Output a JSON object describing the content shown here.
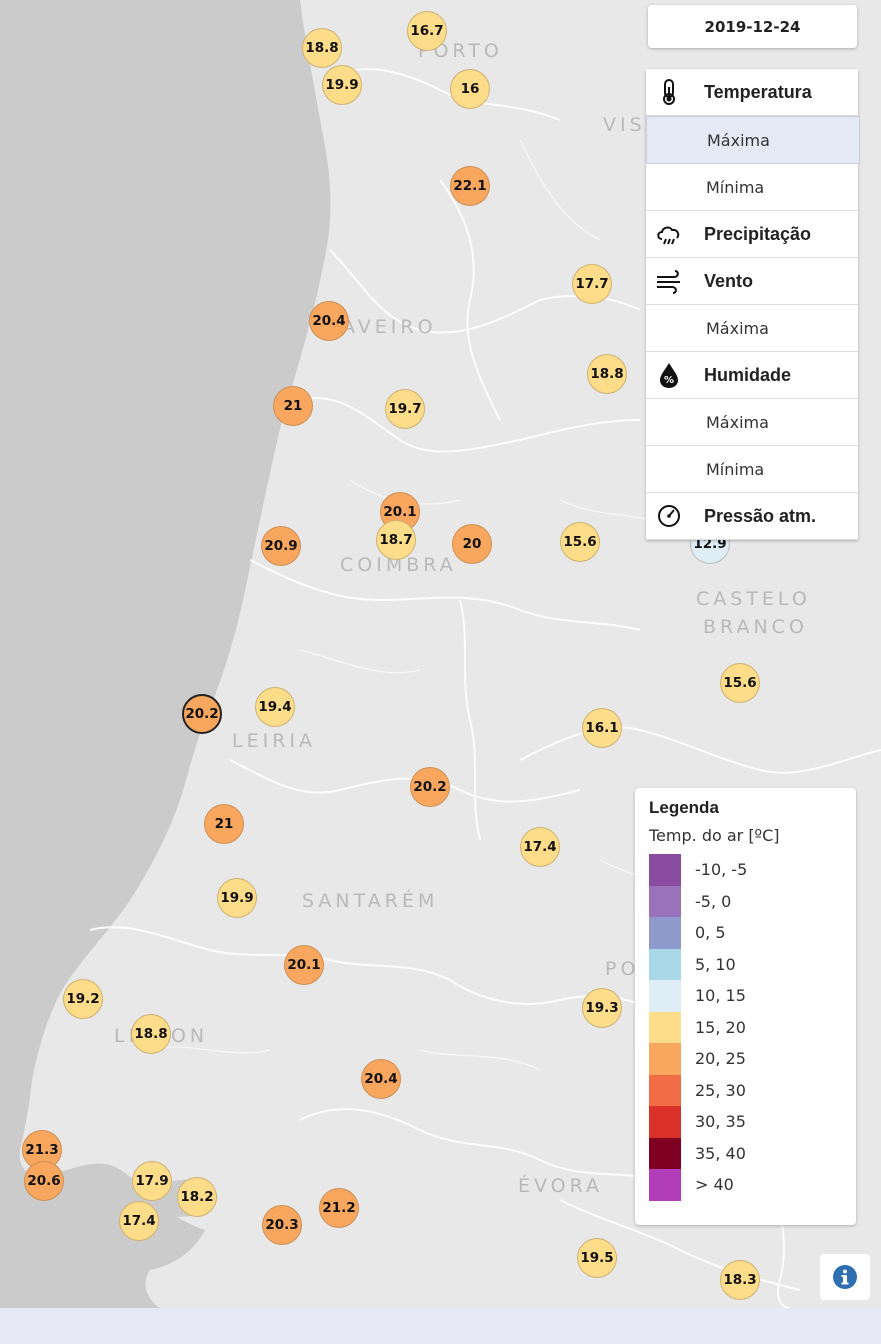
{
  "date": "2019-12-24",
  "menu": [
    {
      "kind": "head",
      "label": "Temperatura",
      "icon": "thermometer-icon"
    },
    {
      "kind": "sub",
      "label": "Máxima",
      "active": true
    },
    {
      "kind": "sub",
      "label": "Mínima",
      "active": false
    },
    {
      "kind": "head",
      "label": "Precipitação",
      "icon": "rain-cloud-icon"
    },
    {
      "kind": "head",
      "label": "Vento",
      "icon": "wind-icon"
    },
    {
      "kind": "sub",
      "label": "Máxima",
      "active": false
    },
    {
      "kind": "head",
      "label": "Humidade",
      "icon": "humidity-drop-icon"
    },
    {
      "kind": "sub",
      "label": "Máxima",
      "active": false
    },
    {
      "kind": "sub",
      "label": "Mínima",
      "active": false
    },
    {
      "kind": "head",
      "label": "Pressão atm.",
      "icon": "pressure-gauge-icon"
    }
  ],
  "cities": [
    "PORTO",
    "VISEU",
    "AVEIRO",
    "COIMBRA",
    "CASTELO",
    "BRANCO",
    "LEIRIA",
    "SANTARÉM",
    "LISBON",
    "ÉVORA",
    "PO"
  ],
  "stations": [
    {
      "v": "16.7",
      "cls": "15-20"
    },
    {
      "v": "18.8",
      "cls": "15-20"
    },
    {
      "v": "19.9",
      "cls": "15-20"
    },
    {
      "v": "16",
      "cls": "15-20"
    },
    {
      "v": "22.1",
      "cls": "20-25"
    },
    {
      "v": "17.7",
      "cls": "15-20"
    },
    {
      "v": "20.4",
      "cls": "20-25"
    },
    {
      "v": "18.8",
      "cls": "15-20"
    },
    {
      "v": "21",
      "cls": "20-25"
    },
    {
      "v": "19.7",
      "cls": "15-20"
    },
    {
      "v": "20.1",
      "cls": "20-25"
    },
    {
      "v": "18.7",
      "cls": "15-20"
    },
    {
      "v": "20.9",
      "cls": "20-25"
    },
    {
      "v": "20",
      "cls": "20-25"
    },
    {
      "v": "15.6",
      "cls": "15-20"
    },
    {
      "v": "15.6",
      "cls": "15-20"
    },
    {
      "v": "20.2",
      "cls": "20-25",
      "selected": true
    },
    {
      "v": "19.4",
      "cls": "15-20"
    },
    {
      "v": "16.1",
      "cls": "15-20"
    },
    {
      "v": "20.2",
      "cls": "20-25"
    },
    {
      "v": "21",
      "cls": "20-25"
    },
    {
      "v": "17.4",
      "cls": "15-20"
    },
    {
      "v": "19.9",
      "cls": "15-20"
    },
    {
      "v": "20.1",
      "cls": "20-25"
    },
    {
      "v": "19.2",
      "cls": "15-20"
    },
    {
      "v": "18.8",
      "cls": "15-20"
    },
    {
      "v": "19.3",
      "cls": "15-20"
    },
    {
      "v": "20.4",
      "cls": "20-25"
    },
    {
      "v": "21.3",
      "cls": "20-25"
    },
    {
      "v": "20.6",
      "cls": "20-25"
    },
    {
      "v": "17.9",
      "cls": "15-20"
    },
    {
      "v": "18.2",
      "cls": "15-20"
    },
    {
      "v": "17.4",
      "cls": "15-20"
    },
    {
      "v": "21.2",
      "cls": "20-25"
    },
    {
      "v": "20.3",
      "cls": "20-25"
    },
    {
      "v": "19.5",
      "cls": "15-20"
    },
    {
      "v": "18.3",
      "cls": "15-20"
    },
    {
      "v": "12.9",
      "cls": "10-15"
    }
  ],
  "legend": {
    "title": "Legenda",
    "subtitle": "Temp. do ar [ºC]",
    "items": [
      {
        "label": "-10, -5",
        "color": "#8a4ca0"
      },
      {
        "label": "-5, 0",
        "color": "#9a72bc"
      },
      {
        "label": "0, 5",
        "color": "#8e9acc"
      },
      {
        "label": "5, 10",
        "color": "#a9d8e8"
      },
      {
        "label": "10, 15",
        "color": "#dfeef6"
      },
      {
        "label": "15, 20",
        "color": "#fddc8a"
      },
      {
        "label": "20, 25",
        "color": "#f9a75e"
      },
      {
        "label": "25, 30",
        "color": "#f26c46"
      },
      {
        "label": "30, 35",
        "color": "#d93127"
      },
      {
        "label": "35, 40",
        "color": "#7f0020"
      },
      {
        "label": "> 40",
        "color": "#b23db8"
      }
    ]
  }
}
